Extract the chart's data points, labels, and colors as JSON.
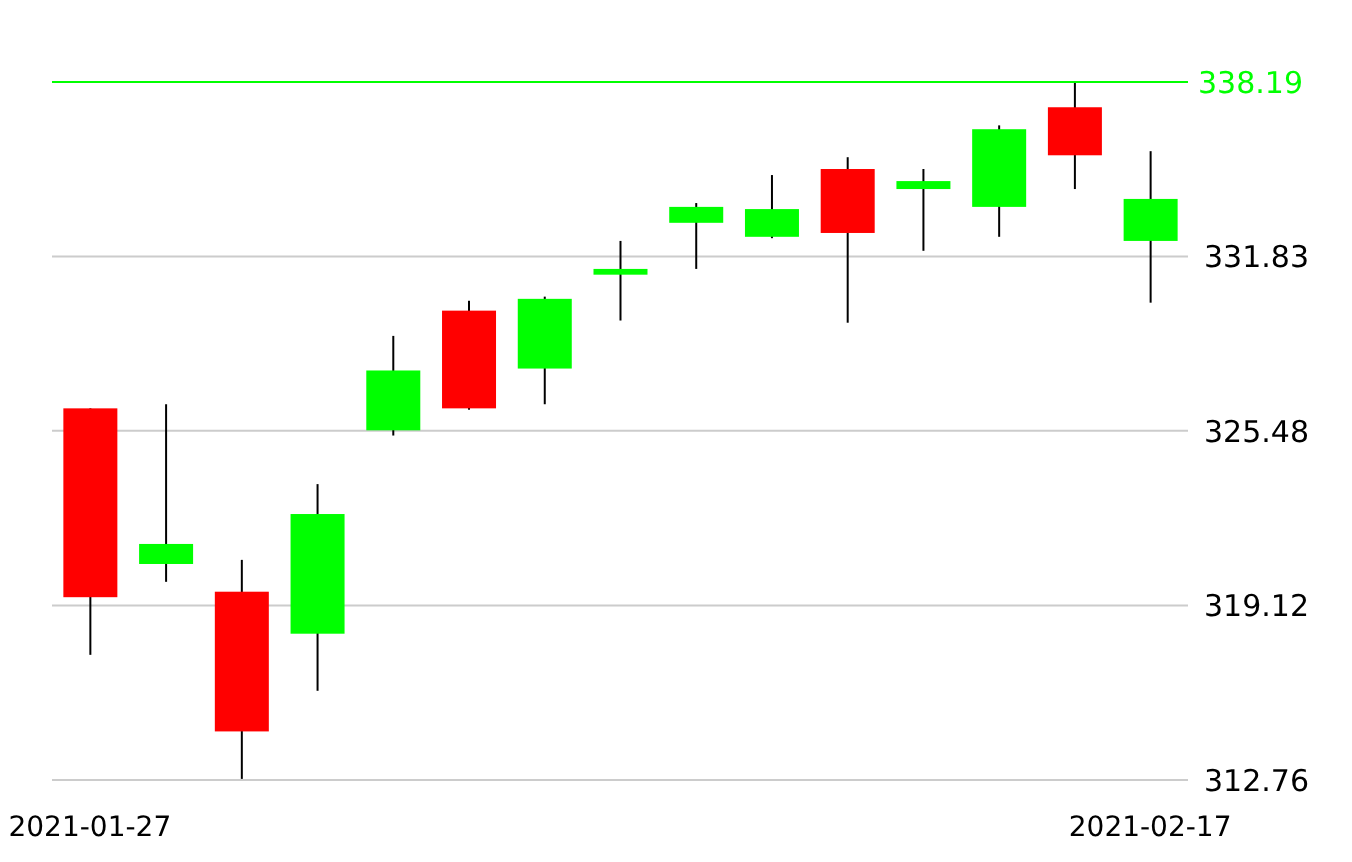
{
  "chart_data": {
    "type": "candlestick",
    "categories": [
      "2021-01-27",
      null,
      null,
      null,
      null,
      null,
      null,
      null,
      null,
      null,
      null,
      null,
      null,
      null,
      "2021-02-17"
    ],
    "ohlc": [
      [
        326.3,
        326.3,
        317.32,
        319.42
      ],
      [
        320.63,
        326.45,
        319.98,
        321.36
      ],
      [
        319.62,
        320.78,
        312.8,
        314.53
      ],
      [
        318.09,
        323.54,
        316.01,
        322.45
      ],
      [
        325.5,
        328.94,
        325.31,
        327.68
      ],
      [
        329.86,
        330.22,
        326.25,
        326.3
      ],
      [
        327.75,
        330.37,
        326.45,
        330.29
      ],
      [
        331.17,
        332.4,
        329.5,
        331.38
      ],
      [
        333.06,
        333.78,
        331.38,
        333.64
      ],
      [
        332.55,
        334.8,
        332.5,
        333.56
      ],
      [
        335.02,
        335.45,
        329.42,
        332.69
      ],
      [
        334.29,
        335.02,
        332.04,
        334.58
      ],
      [
        333.64,
        336.61,
        332.55,
        336.47
      ],
      [
        337.27,
        338.19,
        334.29,
        335.52
      ],
      [
        332.4,
        335.67,
        330.15,
        333.93
      ]
    ],
    "colors": [
      "#ff0000",
      "#00ff00",
      "#ff0000",
      "#00ff00",
      "#00ff00",
      "#ff0000",
      "#00ff00",
      "#00ff00",
      "#00ff00",
      "#00ff00",
      "#ff0000",
      "#00ff00",
      "#00ff00",
      "#ff0000",
      "#00ff00"
    ],
    "ylim": [
      312.76,
      338.19
    ],
    "yticks": [
      312.76,
      319.12,
      325.48,
      331.83
    ],
    "ref_lines": [
      {
        "axis": "y",
        "value": 338.19,
        "label": "338.19",
        "color": "#00ff00"
      }
    ],
    "grid": "y"
  }
}
